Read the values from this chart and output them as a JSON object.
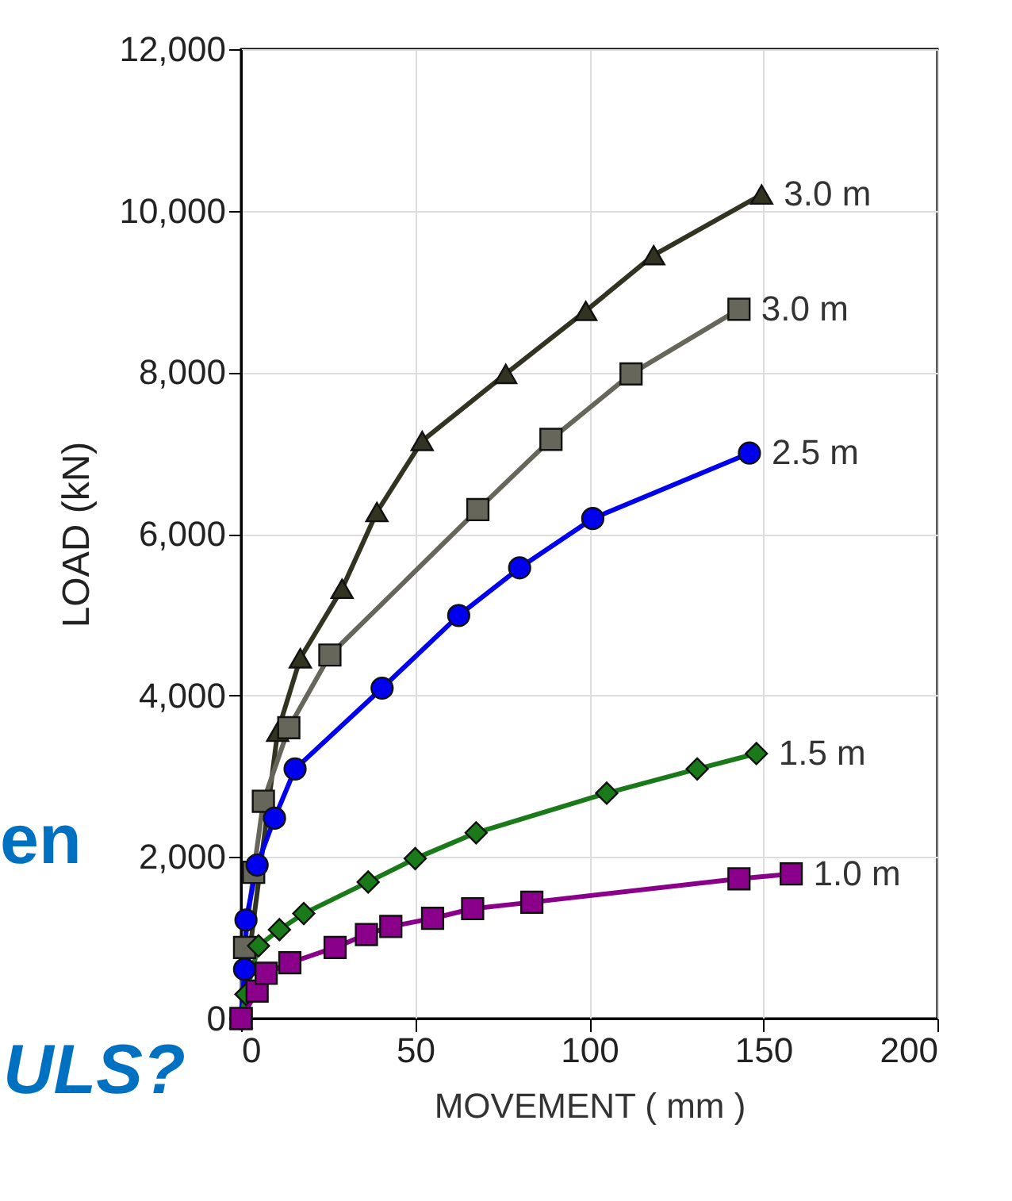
{
  "chart_data": {
    "type": "line",
    "xlabel": "MOVEMENT ( mm )",
    "ylabel": "LOAD (kN)",
    "xlim": [
      0,
      200
    ],
    "ylim": [
      0,
      12000
    ],
    "xticks": [
      0,
      50,
      100,
      150,
      200
    ],
    "yticks": [
      0,
      {
        "value": 2000,
        "label": "2,000"
      },
      {
        "value": 4000,
        "label": "4,000"
      },
      {
        "value": 6000,
        "label": "6,000"
      },
      {
        "value": 8000,
        "label": "8,000"
      },
      {
        "value": 10000,
        "label": "10,000"
      },
      {
        "value": 12000,
        "label": "12,000"
      }
    ],
    "grid": true,
    "legend": false,
    "line_style": "solid",
    "annotations": [
      "en",
      "ULS?"
    ],
    "series": [
      {
        "name": "3.0 m",
        "color": "#333322",
        "marker": "triangle",
        "x": [
          0,
          10.5,
          17,
          29,
          39,
          52,
          76,
          99,
          118.5,
          149.5
        ],
        "values": [
          0,
          3550,
          4460,
          5320,
          6270,
          7150,
          7980,
          8760,
          9450,
          10200
        ]
      },
      {
        "name": "3.0 m",
        "color": "#66665a",
        "marker": "square",
        "x": [
          0,
          1,
          3.6,
          6.4,
          13.7,
          25.5,
          68,
          89,
          112,
          143
        ],
        "values": [
          0,
          880,
          1810,
          2690,
          3600,
          4500,
          6300,
          7170,
          7980,
          8780
        ]
      },
      {
        "name": "2.5 m",
        "color": "#0000ee",
        "marker": "circle",
        "x": [
          0,
          1,
          1.4,
          4.6,
          9.6,
          15.5,
          40.5,
          62.5,
          80,
          101,
          146
        ],
        "values": [
          0,
          610,
          1220,
          1900,
          2480,
          3090,
          4090,
          4990,
          5580,
          6190,
          7000
        ]
      },
      {
        "name": "1.5 m",
        "color": "#1a7a1a",
        "marker": "diamond",
        "x": [
          0,
          1.4,
          5,
          11,
          18,
          36.5,
          50,
          67.5,
          105,
          131,
          148
        ],
        "values": [
          0,
          300,
          900,
          1100,
          1300,
          1690,
          1980,
          2300,
          2790,
          3090,
          3280
        ]
      },
      {
        "name": "1.0 m",
        "color": "#8b008b",
        "marker": "square",
        "x": [
          0,
          4.6,
          7.2,
          14,
          27,
          36,
          43,
          55,
          66.5,
          83.5,
          143,
          158
        ],
        "values": [
          0,
          340,
          560,
          690,
          880,
          1040,
          1140,
          1240,
          1360,
          1440,
          1730,
          1790
        ]
      }
    ]
  }
}
